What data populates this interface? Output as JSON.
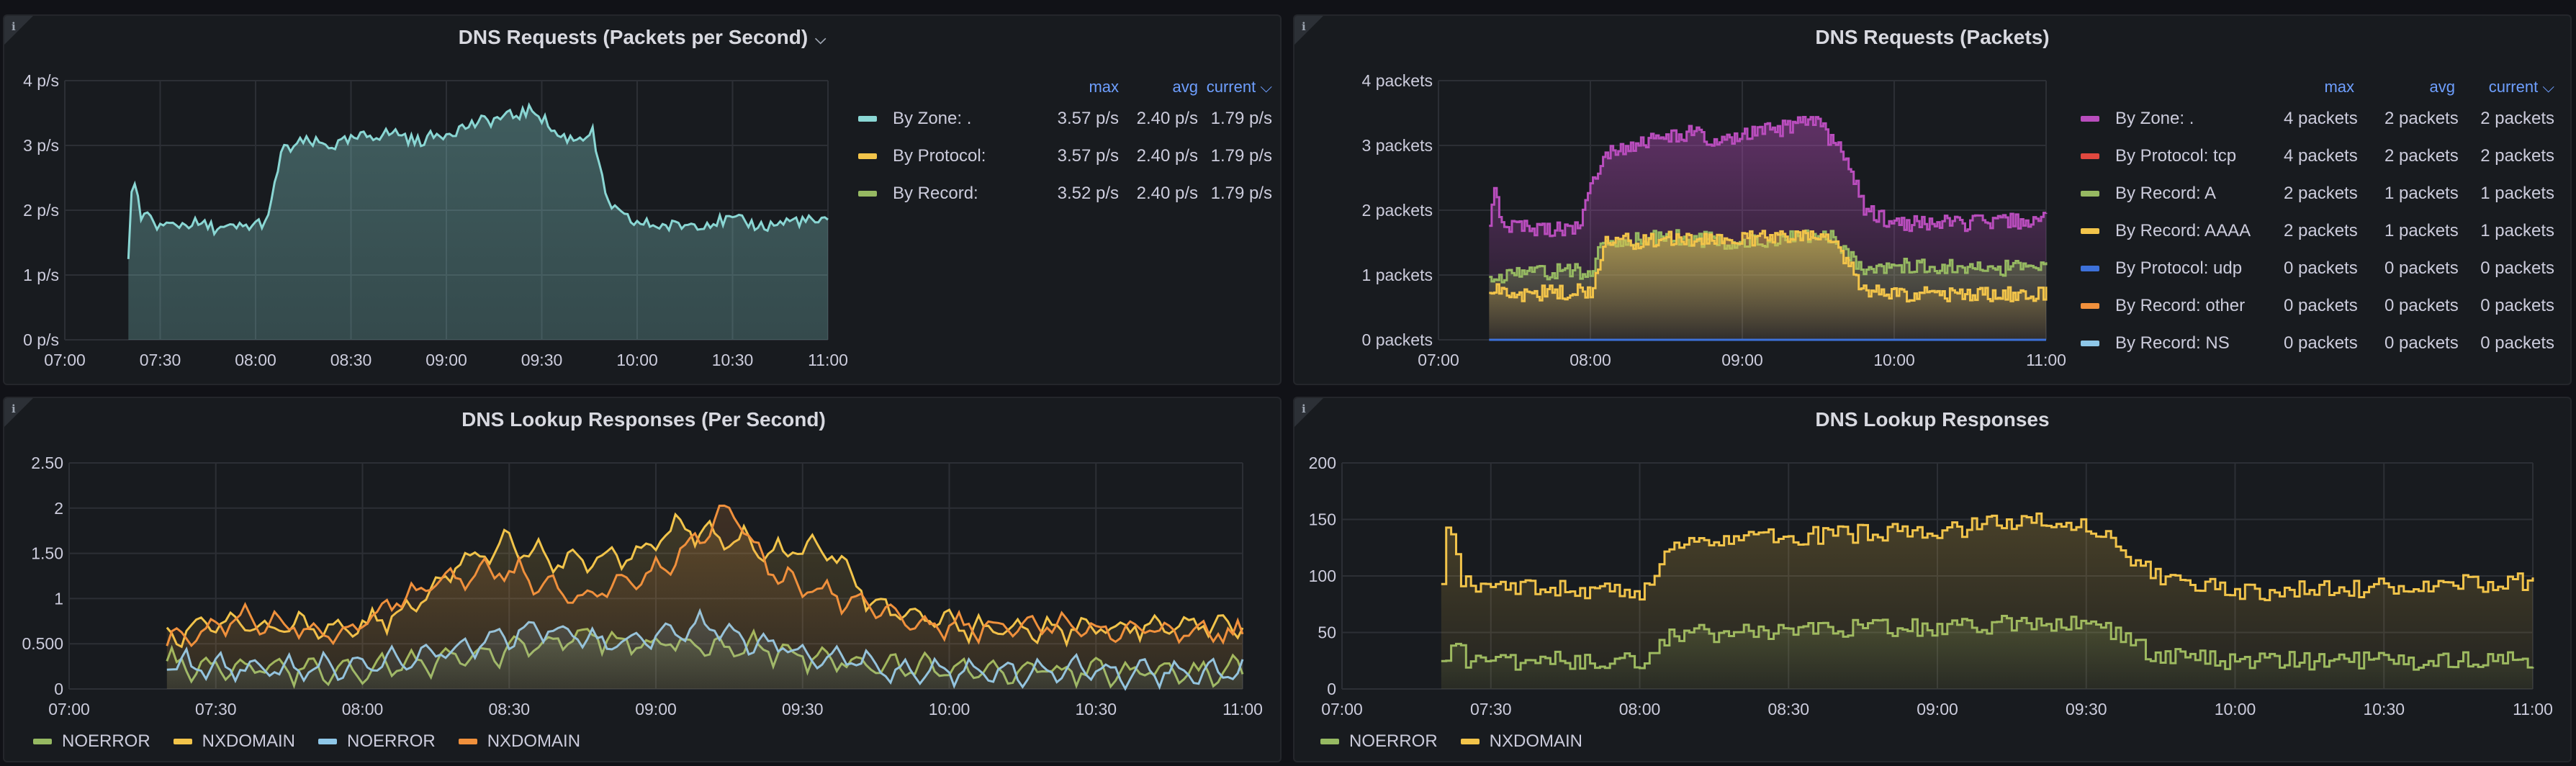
{
  "colors": {
    "teal": "#8ad7d4",
    "yellow": "#f2c44a",
    "green": "#96b962",
    "purple": "#b94dbd",
    "red": "#e0483f",
    "blue": "#3d71d9",
    "orange": "#f0903c",
    "lightblue": "#8ec7e8",
    "header_blue": "#6e9fff"
  },
  "panels": [
    {
      "title": "DNS Requests (Packets per Second)",
      "title_chevron": "⌵",
      "info": "i",
      "legend_headers": {
        "max": "max",
        "avg": "avg",
        "current": "current ⌵"
      },
      "legend": [
        {
          "name": "By Zone: .",
          "max": "3.57 p/s",
          "avg": "2.40 p/s",
          "current": "1.79 p/s",
          "color": "#8ad7d4"
        },
        {
          "name": "By Protocol:",
          "max": "3.57 p/s",
          "avg": "2.40 p/s",
          "current": "1.79 p/s",
          "color": "#f2c44a"
        },
        {
          "name": "By Record:",
          "max": "3.52 p/s",
          "avg": "2.40 p/s",
          "current": "1.79 p/s",
          "color": "#96b962"
        }
      ]
    },
    {
      "title": "DNS Requests (Packets)",
      "info": "i",
      "legend_headers": {
        "max": "max",
        "avg": "avg",
        "current": "current ⌵"
      },
      "legend": [
        {
          "name": "By Zone: .",
          "max": "4 packets",
          "avg": "2 packets",
          "current": "2 packets",
          "color": "#b94dbd"
        },
        {
          "name": "By Protocol: tcp",
          "max": "4 packets",
          "avg": "2 packets",
          "current": "2 packets",
          "color": "#e0483f"
        },
        {
          "name": "By Record: A",
          "max": "2 packets",
          "avg": "1 packets",
          "current": "1 packets",
          "color": "#96b962"
        },
        {
          "name": "By Record: AAAA",
          "max": "2 packets",
          "avg": "1 packets",
          "current": "1 packets",
          "color": "#f2c44a"
        },
        {
          "name": "By Protocol: udp",
          "max": "0 packets",
          "avg": "0 packets",
          "current": "0 packets",
          "color": "#3d71d9"
        },
        {
          "name": "By Record: other",
          "max": "0 packets",
          "avg": "0 packets",
          "current": "0 packets",
          "color": "#f0903c"
        },
        {
          "name": "By Record: NS",
          "max": "0 packets",
          "avg": "0 packets",
          "current": "0 packets",
          "color": "#8ec7e8"
        }
      ]
    },
    {
      "title": "DNS Lookup Responses (Per Second)",
      "info": "i",
      "legend": [
        {
          "name": "NOERROR",
          "color": "#96b962"
        },
        {
          "name": "NXDOMAIN",
          "color": "#f2c44a"
        },
        {
          "name": "NOERROR",
          "color": "#8ec7e8"
        },
        {
          "name": "NXDOMAIN",
          "color": "#f0903c"
        }
      ]
    },
    {
      "title": "DNS Lookup Responses",
      "info": "i",
      "legend": [
        {
          "name": "NOERROR",
          "color": "#96b962"
        },
        {
          "name": "NXDOMAIN",
          "color": "#f2c44a"
        }
      ]
    }
  ],
  "chart_data": [
    {
      "type": "area",
      "title": "DNS Requests (Packets per Second)",
      "x_ticks": [
        "07:00",
        "07:30",
        "08:00",
        "08:30",
        "09:00",
        "09:30",
        "10:00",
        "10:30",
        "11:00"
      ],
      "y_ticks": [
        "0 p/s",
        "1 p/s",
        "2 p/s",
        "3 p/s",
        "4 p/s"
      ],
      "ylim": [
        0,
        4
      ],
      "xlim": [
        "07:00",
        "11:00"
      ],
      "series": [
        {
          "name": "By Zone: .",
          "points": [
            [
              "07:20",
              1.3
            ],
            [
              "07:21",
              2.2
            ],
            [
              "07:22",
              2.5
            ],
            [
              "07:24",
              1.8
            ],
            [
              "07:26",
              1.9
            ],
            [
              "07:30",
              1.75
            ],
            [
              "07:40",
              1.8
            ],
            [
              "07:50",
              1.7
            ],
            [
              "07:58",
              1.75
            ],
            [
              "08:04",
              1.85
            ],
            [
              "08:08",
              2.9
            ],
            [
              "08:15",
              3.05
            ],
            [
              "08:25",
              3.0
            ],
            [
              "08:35",
              3.15
            ],
            [
              "08:45",
              3.2
            ],
            [
              "08:50",
              3.05
            ],
            [
              "09:00",
              3.2
            ],
            [
              "09:10",
              3.35
            ],
            [
              "09:20",
              3.45
            ],
            [
              "09:28",
              3.55
            ],
            [
              "09:35",
              3.15
            ],
            [
              "09:40",
              3.1
            ],
            [
              "09:46",
              3.2
            ],
            [
              "09:50",
              2.2
            ],
            [
              "09:55",
              1.9
            ],
            [
              "10:00",
              1.8
            ],
            [
              "10:10",
              1.75
            ],
            [
              "10:20",
              1.8
            ],
            [
              "10:30",
              1.85
            ],
            [
              "10:40",
              1.75
            ],
            [
              "10:50",
              1.85
            ],
            [
              "11:00",
              1.8
            ]
          ]
        }
      ]
    },
    {
      "type": "area",
      "title": "DNS Requests (Packets)",
      "x_ticks": [
        "07:00",
        "08:00",
        "09:00",
        "10:00",
        "11:00"
      ],
      "y_ticks": [
        "0 packets",
        "1 packets",
        "2 packets",
        "3 packets",
        "4 packets"
      ],
      "ylim": [
        0,
        4
      ],
      "xlim": [
        "07:00",
        "11:00"
      ],
      "series": [
        {
          "name": "By Zone: .",
          "points": [
            [
              "07:20",
              1.8
            ],
            [
              "07:22",
              2.4
            ],
            [
              "07:25",
              1.8
            ],
            [
              "07:40",
              1.7
            ],
            [
              "07:55",
              1.75
            ],
            [
              "08:05",
              2.9
            ],
            [
              "08:20",
              3.05
            ],
            [
              "08:40",
              3.2
            ],
            [
              "08:50",
              3.0
            ],
            [
              "09:00",
              3.15
            ],
            [
              "09:20",
              3.3
            ],
            [
              "09:30",
              3.4
            ],
            [
              "09:35",
              3.05
            ],
            [
              "09:40",
              2.9
            ],
            [
              "09:48",
              2.0
            ],
            [
              "10:00",
              1.8
            ],
            [
              "10:30",
              1.8
            ],
            [
              "11:00",
              1.85
            ]
          ]
        },
        {
          "name": "By Record: A",
          "points": [
            [
              "07:20",
              0.95
            ],
            [
              "07:30",
              1.05
            ],
            [
              "08:00",
              1.05
            ],
            [
              "08:05",
              1.5
            ],
            [
              "08:30",
              1.6
            ],
            [
              "09:00",
              1.5
            ],
            [
              "09:35",
              1.6
            ],
            [
              "09:48",
              1.1
            ],
            [
              "10:00",
              1.15
            ],
            [
              "10:30",
              1.1
            ],
            [
              "11:00",
              1.1
            ]
          ]
        },
        {
          "name": "By Record: AAAA",
          "points": [
            [
              "07:20",
              0.8
            ],
            [
              "07:30",
              0.7
            ],
            [
              "08:00",
              0.75
            ],
            [
              "08:05",
              1.5
            ],
            [
              "08:30",
              1.55
            ],
            [
              "09:00",
              1.55
            ],
            [
              "09:35",
              1.6
            ],
            [
              "09:48",
              0.75
            ],
            [
              "10:00",
              0.7
            ],
            [
              "10:30",
              0.7
            ],
            [
              "11:00",
              0.7
            ]
          ]
        },
        {
          "name": "By Protocol: udp",
          "points": [
            [
              "07:20",
              0
            ],
            [
              "11:00",
              0
            ]
          ]
        }
      ]
    },
    {
      "type": "line",
      "title": "DNS Lookup Responses (Per Second)",
      "x_ticks": [
        "07:00",
        "07:30",
        "08:00",
        "08:30",
        "09:00",
        "09:30",
        "10:00",
        "10:30",
        "11:00"
      ],
      "y_ticks": [
        "0",
        "0.500",
        "1",
        "1.50",
        "2",
        "2.50"
      ],
      "ylim": [
        0,
        2.5
      ],
      "xlim": [
        "07:00",
        "11:00"
      ],
      "series": [
        {
          "name": "NOERROR",
          "points": [
            [
              "07:20",
              0.3
            ],
            [
              "07:40",
              0.22
            ],
            [
              "08:00",
              0.2
            ],
            [
              "08:30",
              0.45
            ],
            [
              "08:45",
              0.6
            ],
            [
              "09:00",
              0.5
            ],
            [
              "09:20",
              0.45
            ],
            [
              "09:45",
              0.25
            ],
            [
              "10:00",
              0.2
            ],
            [
              "10:30",
              0.2
            ],
            [
              "11:00",
              0.2
            ]
          ]
        },
        {
          "name": "NXDOMAIN",
          "points": [
            [
              "07:20",
              0.6
            ],
            [
              "07:30",
              0.75
            ],
            [
              "07:45",
              0.65
            ],
            [
              "08:00",
              0.7
            ],
            [
              "08:10",
              0.9
            ],
            [
              "08:20",
              1.4
            ],
            [
              "08:30",
              1.6
            ],
            [
              "08:40",
              1.4
            ],
            [
              "08:55",
              1.5
            ],
            [
              "09:05",
              1.8
            ],
            [
              "09:15",
              1.65
            ],
            [
              "09:25",
              1.5
            ],
            [
              "09:35",
              1.55
            ],
            [
              "09:45",
              0.9
            ],
            [
              "10:00",
              0.7
            ],
            [
              "10:20",
              0.65
            ],
            [
              "10:40",
              0.7
            ],
            [
              "11:00",
              0.7
            ]
          ]
        },
        {
          "name": "NOERROR",
          "points": [
            [
              "07:20",
              0.25
            ],
            [
              "07:45",
              0.2
            ],
            [
              "08:10",
              0.3
            ],
            [
              "08:35",
              0.7
            ],
            [
              "08:50",
              0.5
            ],
            [
              "09:10",
              0.7
            ],
            [
              "09:30",
              0.4
            ],
            [
              "09:50",
              0.2
            ],
            [
              "10:30",
              0.2
            ],
            [
              "11:00",
              0.15
            ]
          ]
        },
        {
          "name": "NXDOMAIN",
          "points": [
            [
              "07:20",
              0.5
            ],
            [
              "07:35",
              0.8
            ],
            [
              "07:55",
              0.6
            ],
            [
              "08:15",
              1.2
            ],
            [
              "08:30",
              1.3
            ],
            [
              "08:45",
              1.0
            ],
            [
              "09:00",
              1.3
            ],
            [
              "09:15",
              2.0
            ],
            [
              "09:25",
              1.2
            ],
            [
              "09:40",
              1.0
            ],
            [
              "09:55",
              0.7
            ],
            [
              "10:20",
              0.7
            ],
            [
              "11:00",
              0.6
            ]
          ]
        }
      ]
    },
    {
      "type": "line",
      "title": "DNS Lookup Responses",
      "x_ticks": [
        "07:00",
        "07:30",
        "08:00",
        "08:30",
        "09:00",
        "09:30",
        "10:00",
        "10:30",
        "11:00"
      ],
      "y_ticks": [
        "0",
        "50",
        "100",
        "150",
        "200"
      ],
      "ylim": [
        0,
        200
      ],
      "xlim": [
        "07:00",
        "11:00"
      ],
      "series": [
        {
          "name": "NOERROR",
          "points": [
            [
              "07:20",
              20
            ],
            [
              "07:22",
              45
            ],
            [
              "07:25",
              25
            ],
            [
              "07:40",
              25
            ],
            [
              "08:00",
              25
            ],
            [
              "08:06",
              48
            ],
            [
              "08:30",
              52
            ],
            [
              "09:00",
              55
            ],
            [
              "09:30",
              60
            ],
            [
              "09:44",
              30
            ],
            [
              "10:00",
              25
            ],
            [
              "10:30",
              25
            ],
            [
              "11:00",
              25
            ]
          ]
        },
        {
          "name": "NXDOMAIN",
          "points": [
            [
              "07:20",
              100
            ],
            [
              "07:21",
              150
            ],
            [
              "07:24",
              95
            ],
            [
              "07:40",
              90
            ],
            [
              "08:00",
              85
            ],
            [
              "08:06",
              130
            ],
            [
              "08:30",
              135
            ],
            [
              "09:00",
              140
            ],
            [
              "09:20",
              150
            ],
            [
              "09:30",
              145
            ],
            [
              "09:44",
              100
            ],
            [
              "10:00",
              85
            ],
            [
              "10:30",
              90
            ],
            [
              "11:00",
              95
            ]
          ]
        }
      ]
    }
  ]
}
